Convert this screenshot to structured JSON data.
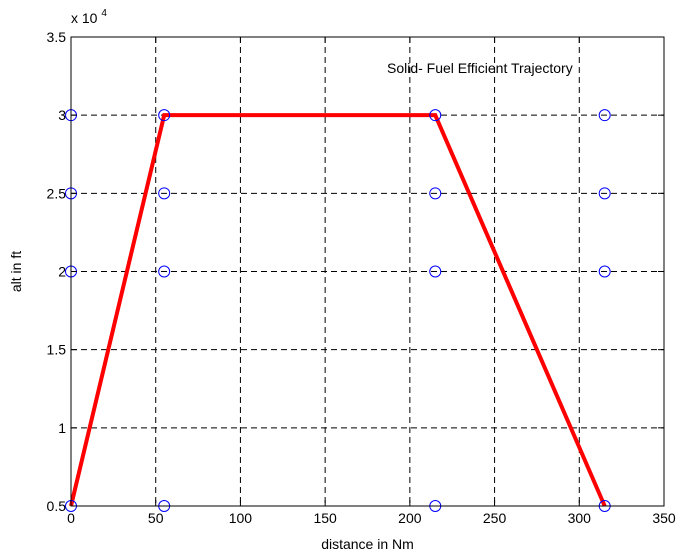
{
  "chart_data": {
    "type": "line",
    "title": "",
    "xlabel": "distance in Nm",
    "ylabel": "alt in ft",
    "xlim": [
      0,
      350
    ],
    "ylim": [
      5000,
      35000
    ],
    "xticks": [
      0,
      50,
      100,
      150,
      200,
      250,
      300,
      350
    ],
    "yticks": [
      5000,
      10000,
      15000,
      20000,
      25000,
      30000,
      35000
    ],
    "xtick_labels": [
      "0",
      "50",
      "100",
      "150",
      "200",
      "250",
      "300",
      "350"
    ],
    "ytick_labels": [
      "0.5",
      "1",
      "1.5",
      "2",
      "2.5",
      "3",
      "3.5"
    ],
    "y_exponent_base": "x 10",
    "y_exponent_power": "4",
    "grid": true,
    "grid_style": "dashed",
    "annotation": "Solid- Fuel Efficient Trajectory",
    "series": [
      {
        "type": "line",
        "color": "#ff0000",
        "points": [
          [
            0,
            5000
          ],
          [
            55,
            30000
          ],
          [
            215,
            30000
          ],
          [
            315,
            5000
          ]
        ]
      },
      {
        "type": "scatter",
        "marker": "open-circle",
        "color": "#0000ff",
        "points": [
          [
            0,
            5000
          ],
          [
            0,
            20000
          ],
          [
            0,
            25000
          ],
          [
            0,
            30000
          ],
          [
            55,
            5000
          ],
          [
            55,
            20000
          ],
          [
            55,
            25000
          ],
          [
            55,
            30000
          ],
          [
            215,
            5000
          ],
          [
            215,
            20000
          ],
          [
            215,
            25000
          ],
          [
            215,
            30000
          ],
          [
            315,
            5000
          ],
          [
            315,
            20000
          ],
          [
            315,
            25000
          ],
          [
            315,
            30000
          ]
        ]
      }
    ]
  }
}
